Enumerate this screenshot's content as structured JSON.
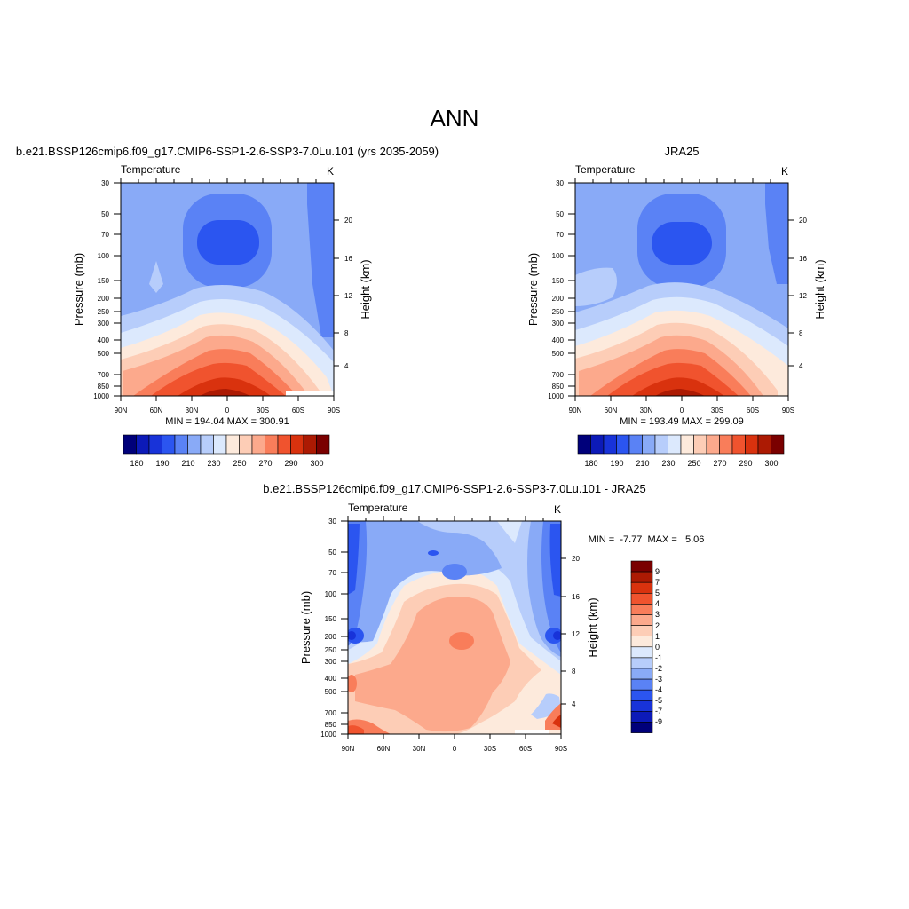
{
  "page": {
    "title": "ANN"
  },
  "colors": {
    "temperature_levels": [
      "#00007a",
      "#0c1ab8",
      "#1833d9",
      "#2b55f0",
      "#5a82f5",
      "#89aaf7",
      "#b7cdfb",
      "#dce9fd",
      "#fdeadc",
      "#fdcdb6",
      "#fca98c",
      "#f97d5a",
      "#f0532e",
      "#d9320e",
      "#ac1a03",
      "#7a0000"
    ],
    "difference_levels": [
      "#00007a",
      "#0c1ab8",
      "#1833d9",
      "#2b55f0",
      "#5a82f5",
      "#89aaf7",
      "#b7cdfb",
      "#dce9fd",
      "#fdeadc",
      "#fdcdb6",
      "#fca98c",
      "#f97d5a",
      "#f0532e",
      "#d9320e",
      "#ac1a03",
      "#7a0000"
    ]
  },
  "chart_data": [
    {
      "type": "heatmap",
      "title": "b.e21.BSSP126cmip6.f09_g17.CMIP6-SSP1-2.6-SSP3-7.0Lu.101 (yrs 2035-2059)",
      "left_string": "Temperature",
      "right_string": "K",
      "xlabel": "",
      "ylabel": "Pressure (mb)",
      "y2label": "Height (km)",
      "x_ticks": [
        "90N",
        "60N",
        "30N",
        "0",
        "30S",
        "60S",
        "90S"
      ],
      "y_ticks": [
        "30",
        "50",
        "70",
        "100",
        "150",
        "200",
        "250",
        "300",
        "400",
        "500",
        "700",
        "850",
        "1000"
      ],
      "y2_ticks": [
        "20",
        "16",
        "12",
        "8",
        "4"
      ],
      "ylim": [
        1000,
        30
      ],
      "y_scale": "log",
      "stats": "MIN = 194.04  MAX = 300.91",
      "colorbar": {
        "orientation": "horizontal",
        "labels": [
          "180",
          "190",
          "210",
          "230",
          "250",
          "270",
          "290",
          "300"
        ]
      },
      "min": 194.04,
      "max": 300.91
    },
    {
      "type": "heatmap",
      "title": "JRA25",
      "left_string": "Temperature",
      "right_string": "K",
      "xlabel": "",
      "ylabel": "Pressure (mb)",
      "y2label": "Height (km)",
      "x_ticks": [
        "90N",
        "60N",
        "30N",
        "0",
        "30S",
        "60S",
        "90S"
      ],
      "y_ticks": [
        "30",
        "50",
        "70",
        "100",
        "150",
        "200",
        "250",
        "300",
        "400",
        "500",
        "700",
        "850",
        "1000"
      ],
      "y2_ticks": [
        "20",
        "16",
        "12",
        "8",
        "4"
      ],
      "ylim": [
        1000,
        30
      ],
      "y_scale": "log",
      "stats": "MIN = 193.49  MAX = 299.09",
      "colorbar": {
        "orientation": "horizontal",
        "labels": [
          "180",
          "190",
          "210",
          "230",
          "250",
          "270",
          "290",
          "300"
        ]
      },
      "min": 193.49,
      "max": 299.09
    },
    {
      "type": "heatmap",
      "title": "b.e21.BSSP126cmip6.f09_g17.CMIP6-SSP1-2.6-SSP3-7.0Lu.101 - JRA25",
      "left_string": "Temperature",
      "right_string": "K",
      "xlabel": "",
      "ylabel": "Pressure (mb)",
      "y2label": "Height (km)",
      "x_ticks": [
        "90N",
        "60N",
        "30N",
        "0",
        "30S",
        "60S",
        "90S"
      ],
      "y_ticks": [
        "30",
        "50",
        "70",
        "100",
        "150",
        "200",
        "250",
        "300",
        "400",
        "500",
        "700",
        "850",
        "1000"
      ],
      "y2_ticks": [
        "20",
        "16",
        "12",
        "8",
        "4"
      ],
      "ylim": [
        1000,
        30
      ],
      "y_scale": "log",
      "stats": "MIN =  -7.77  MAX =   5.06",
      "colorbar": {
        "orientation": "vertical",
        "labels": [
          "9",
          "7",
          "5",
          "4",
          "3",
          "2",
          "1",
          "0",
          "-1",
          "-2",
          "-3",
          "-4",
          "-5",
          "-7",
          "-9"
        ]
      },
      "min": -7.77,
      "max": 5.06
    }
  ]
}
